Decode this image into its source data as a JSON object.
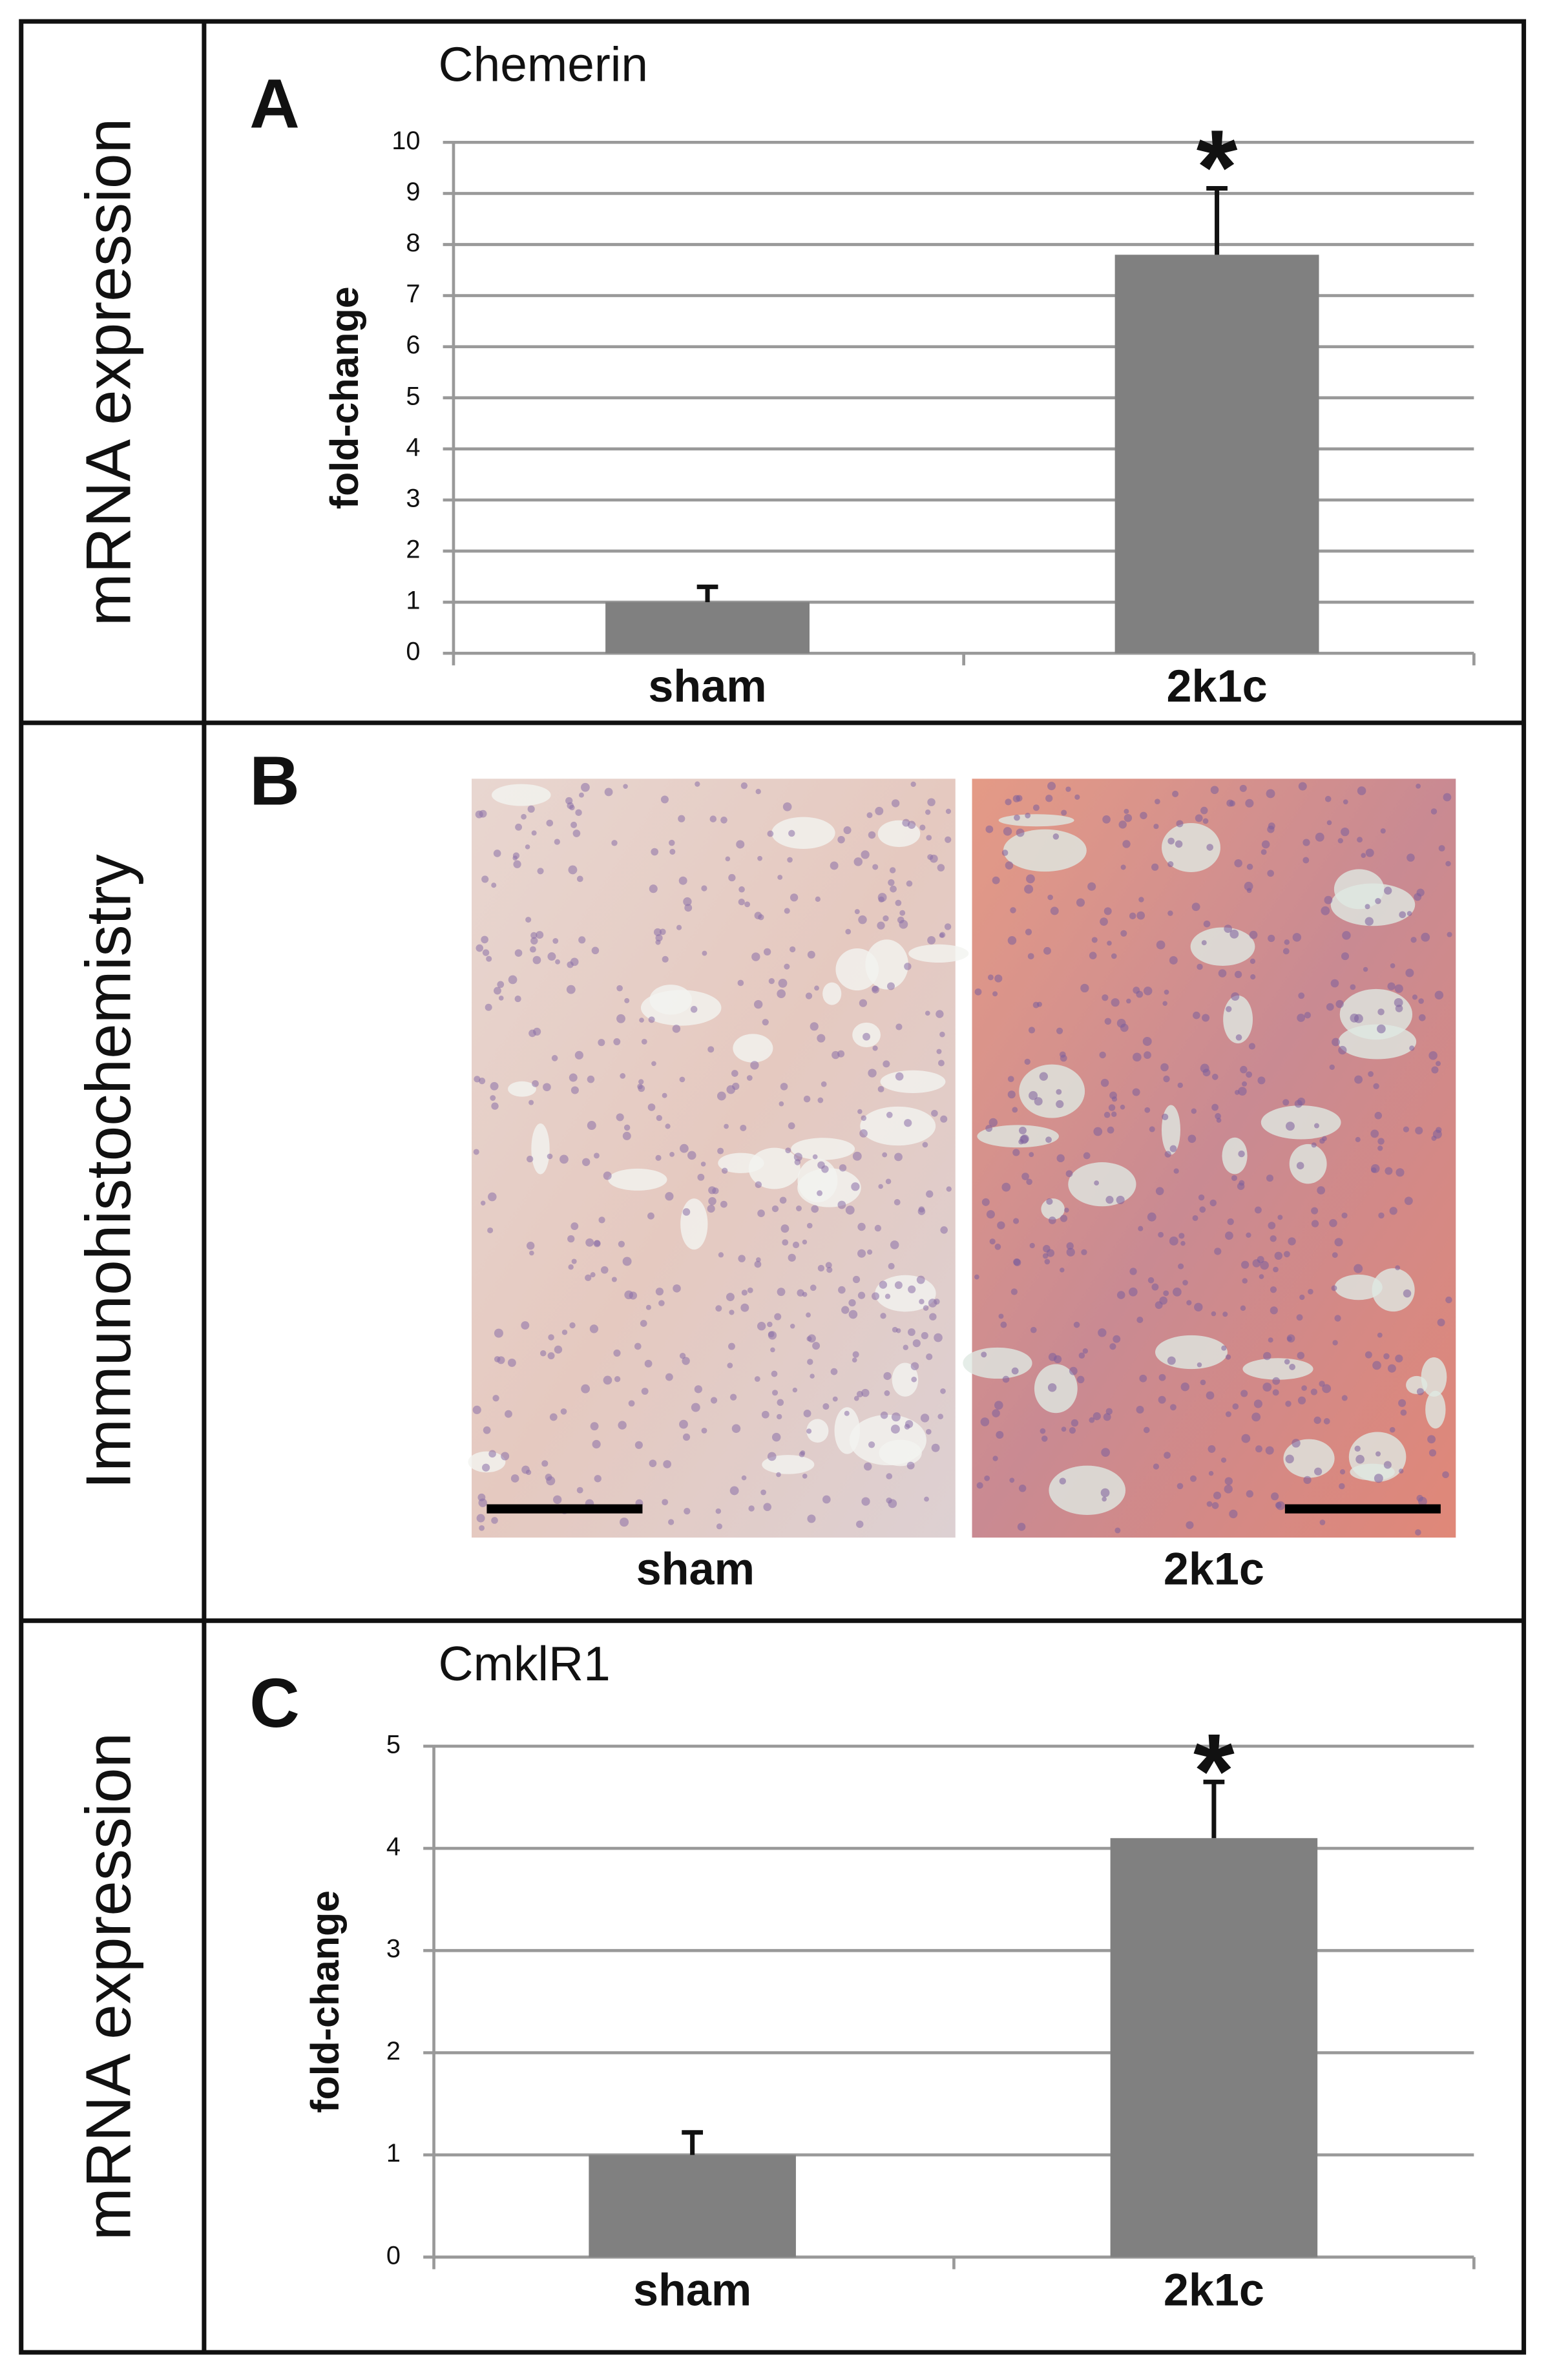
{
  "chart_data": [
    {
      "type": "bar",
      "panel_label": "A",
      "side_label": "mRNA expression",
      "title": "Chemerin",
      "ylabel": "fold-change",
      "categories": [
        "sham",
        "2k1c"
      ],
      "series": [
        {
          "color": "#808080",
          "values": [
            1.0,
            7.8
          ],
          "errors": [
            0.3,
            1.3
          ]
        }
      ],
      "annotations": [
        {
          "category": 1,
          "text": "*"
        }
      ],
      "ylim": [
        0,
        10
      ],
      "yticks": [
        0,
        1,
        2,
        3,
        4,
        5,
        6,
        7,
        8,
        9,
        10
      ],
      "grid": true
    },
    {
      "type": "bar",
      "panel_label": "C",
      "side_label": "mRNA expression",
      "title": "CmklR1",
      "ylabel": "fold-change",
      "categories": [
        "sham",
        "2k1c"
      ],
      "series": [
        {
          "color": "#808080",
          "values": [
            1.0,
            4.1
          ],
          "errors": [
            0.22,
            0.55
          ]
        }
      ],
      "annotations": [
        {
          "category": 1,
          "text": "*"
        }
      ],
      "ylim": [
        0,
        5
      ],
      "yticks": [
        0,
        1,
        2,
        3,
        4,
        5
      ],
      "grid": true
    }
  ],
  "images": {
    "panel_label": "B",
    "side_label": "Immunohistochemistry",
    "labels": [
      "sham",
      "2k1c"
    ]
  }
}
